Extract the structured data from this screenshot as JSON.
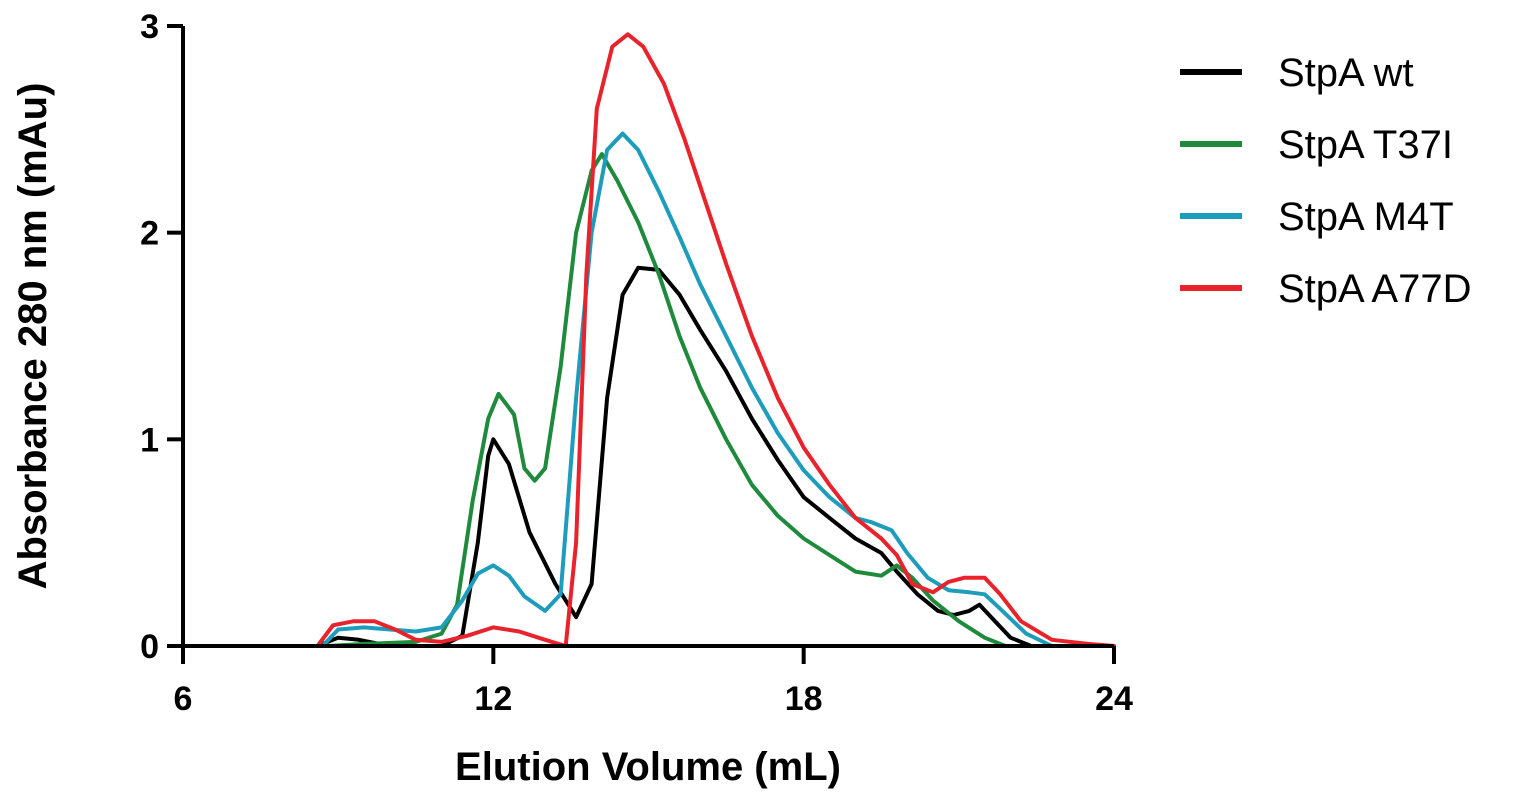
{
  "chart_data": {
    "type": "line",
    "xlabel": "Elution Volume (mL)",
    "ylabel": "Absorbance 280 nm (mAu)",
    "xlim": [
      6,
      24
    ],
    "ylim": [
      0,
      3
    ],
    "xticks": [
      6,
      12,
      18,
      24
    ],
    "yticks": [
      0,
      1,
      2,
      3
    ],
    "grid": false,
    "legend_position": "right",
    "series": [
      {
        "name": "StpA wt",
        "color": "#000000",
        "points": [
          [
            8.6,
            0.0
          ],
          [
            9.0,
            0.04
          ],
          [
            9.4,
            0.03
          ],
          [
            10.0,
            0.0
          ],
          [
            11.0,
            0.0
          ],
          [
            11.4,
            0.05
          ],
          [
            11.7,
            0.5
          ],
          [
            11.9,
            0.92
          ],
          [
            12.0,
            1.0
          ],
          [
            12.3,
            0.88
          ],
          [
            12.7,
            0.55
          ],
          [
            13.2,
            0.3
          ],
          [
            13.6,
            0.14
          ],
          [
            13.9,
            0.3
          ],
          [
            14.2,
            1.2
          ],
          [
            14.5,
            1.7
          ],
          [
            14.8,
            1.83
          ],
          [
            15.2,
            1.82
          ],
          [
            15.6,
            1.7
          ],
          [
            16.0,
            1.53
          ],
          [
            16.5,
            1.33
          ],
          [
            17.0,
            1.1
          ],
          [
            17.5,
            0.9
          ],
          [
            18.0,
            0.72
          ],
          [
            18.5,
            0.62
          ],
          [
            19.0,
            0.52
          ],
          [
            19.5,
            0.45
          ],
          [
            19.8,
            0.36
          ],
          [
            20.2,
            0.25
          ],
          [
            20.6,
            0.17
          ],
          [
            20.9,
            0.15
          ],
          [
            21.2,
            0.17
          ],
          [
            21.4,
            0.2
          ],
          [
            21.7,
            0.12
          ],
          [
            22.0,
            0.04
          ],
          [
            22.4,
            0.0
          ]
        ]
      },
      {
        "name": "StpA T37I",
        "color": "#1f8a3c",
        "points": [
          [
            8.8,
            0.0
          ],
          [
            9.5,
            0.01
          ],
          [
            10.5,
            0.02
          ],
          [
            11.0,
            0.06
          ],
          [
            11.3,
            0.2
          ],
          [
            11.6,
            0.7
          ],
          [
            11.9,
            1.1
          ],
          [
            12.1,
            1.22
          ],
          [
            12.4,
            1.12
          ],
          [
            12.6,
            0.86
          ],
          [
            12.8,
            0.8
          ],
          [
            13.0,
            0.86
          ],
          [
            13.3,
            1.35
          ],
          [
            13.6,
            2.0
          ],
          [
            13.9,
            2.3
          ],
          [
            14.1,
            2.38
          ],
          [
            14.4,
            2.25
          ],
          [
            14.8,
            2.05
          ],
          [
            15.2,
            1.8
          ],
          [
            15.6,
            1.5
          ],
          [
            16.0,
            1.25
          ],
          [
            16.5,
            1.0
          ],
          [
            17.0,
            0.78
          ],
          [
            17.5,
            0.63
          ],
          [
            18.0,
            0.52
          ],
          [
            18.5,
            0.44
          ],
          [
            19.0,
            0.36
          ],
          [
            19.5,
            0.34
          ],
          [
            19.8,
            0.39
          ],
          [
            20.1,
            0.33
          ],
          [
            20.5,
            0.22
          ],
          [
            21.0,
            0.12
          ],
          [
            21.5,
            0.04
          ],
          [
            21.9,
            0.0
          ]
        ]
      },
      {
        "name": "StpA M4T",
        "color": "#1e9cbc",
        "points": [
          [
            8.7,
            0.0
          ],
          [
            9.0,
            0.08
          ],
          [
            9.5,
            0.09
          ],
          [
            10.0,
            0.08
          ],
          [
            10.5,
            0.07
          ],
          [
            11.0,
            0.09
          ],
          [
            11.4,
            0.22
          ],
          [
            11.7,
            0.35
          ],
          [
            12.0,
            0.39
          ],
          [
            12.3,
            0.34
          ],
          [
            12.6,
            0.24
          ],
          [
            13.0,
            0.17
          ],
          [
            13.3,
            0.25
          ],
          [
            13.6,
            1.2
          ],
          [
            13.9,
            2.0
          ],
          [
            14.2,
            2.4
          ],
          [
            14.5,
            2.48
          ],
          [
            14.8,
            2.4
          ],
          [
            15.2,
            2.2
          ],
          [
            15.6,
            1.98
          ],
          [
            16.0,
            1.75
          ],
          [
            16.5,
            1.5
          ],
          [
            17.0,
            1.25
          ],
          [
            17.5,
            1.03
          ],
          [
            18.0,
            0.85
          ],
          [
            18.5,
            0.72
          ],
          [
            19.0,
            0.62
          ],
          [
            19.3,
            0.6
          ],
          [
            19.7,
            0.56
          ],
          [
            20.0,
            0.45
          ],
          [
            20.4,
            0.33
          ],
          [
            20.8,
            0.27
          ],
          [
            21.2,
            0.26
          ],
          [
            21.5,
            0.25
          ],
          [
            21.8,
            0.18
          ],
          [
            22.3,
            0.06
          ],
          [
            22.8,
            0.0
          ]
        ]
      },
      {
        "name": "StpA A77D",
        "color": "#e8232b",
        "points": [
          [
            8.6,
            0.0
          ],
          [
            8.9,
            0.1
          ],
          [
            9.3,
            0.12
          ],
          [
            9.7,
            0.12
          ],
          [
            10.1,
            0.08
          ],
          [
            10.5,
            0.03
          ],
          [
            11.0,
            0.02
          ],
          [
            11.5,
            0.05
          ],
          [
            12.0,
            0.09
          ],
          [
            12.5,
            0.07
          ],
          [
            13.0,
            0.03
          ],
          [
            13.4,
            0.0
          ],
          [
            13.6,
            0.5
          ],
          [
            13.8,
            1.8
          ],
          [
            14.0,
            2.6
          ],
          [
            14.3,
            2.9
          ],
          [
            14.6,
            2.96
          ],
          [
            14.9,
            2.9
          ],
          [
            15.3,
            2.72
          ],
          [
            15.7,
            2.45
          ],
          [
            16.1,
            2.15
          ],
          [
            16.5,
            1.85
          ],
          [
            17.0,
            1.5
          ],
          [
            17.5,
            1.2
          ],
          [
            18.0,
            0.96
          ],
          [
            18.5,
            0.78
          ],
          [
            19.0,
            0.62
          ],
          [
            19.5,
            0.52
          ],
          [
            19.8,
            0.44
          ],
          [
            20.1,
            0.3
          ],
          [
            20.5,
            0.26
          ],
          [
            20.8,
            0.31
          ],
          [
            21.1,
            0.33
          ],
          [
            21.5,
            0.33
          ],
          [
            21.8,
            0.25
          ],
          [
            22.2,
            0.12
          ],
          [
            22.8,
            0.03
          ],
          [
            23.5,
            0.01
          ],
          [
            24.0,
            0.0
          ]
        ]
      }
    ]
  }
}
